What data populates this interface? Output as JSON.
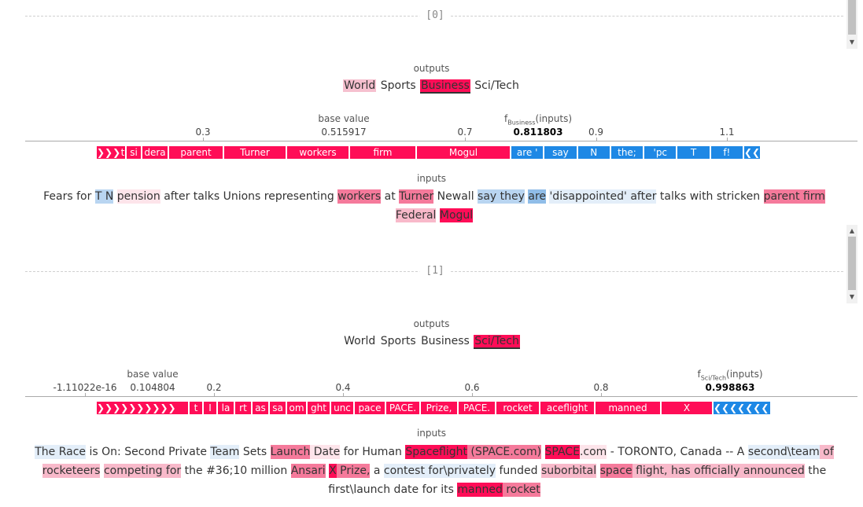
{
  "samples": [
    {
      "index_label": "[0]",
      "outputs_label": "outputs",
      "classes": [
        "World",
        "Sports",
        "Business",
        "Sci/Tech"
      ],
      "selected_class": "Business",
      "axis": {
        "ticks": [
          {
            "label": "0.3",
            "value": 0.3
          },
          {
            "label": "0.5",
            "value": 0.5
          },
          {
            "label": "0.7",
            "value": 0.7
          },
          {
            "label": "0.9",
            "value": 0.9
          },
          {
            "label": "1.1",
            "value": 1.1
          }
        ],
        "base_value_label": "base value",
        "base_value": "0.515917",
        "fx_prefix": "f",
        "fx_sub": "Business",
        "fx_suffix": "(inputs)",
        "fx_value": "0.811803"
      },
      "force_segments": [
        {
          "label": "t",
          "sign": "pos"
        },
        {
          "label": "si",
          "sign": "pos"
        },
        {
          "label": "dera",
          "sign": "pos"
        },
        {
          "label": "parent",
          "sign": "pos"
        },
        {
          "label": "Turner",
          "sign": "pos"
        },
        {
          "label": "workers",
          "sign": "pos"
        },
        {
          "label": "firm",
          "sign": "pos"
        },
        {
          "label": "Mogul",
          "sign": "pos"
        },
        {
          "label": "are '",
          "sign": "neg"
        },
        {
          "label": "say",
          "sign": "neg"
        },
        {
          "label": "N",
          "sign": "neg"
        },
        {
          "label": "the;",
          "sign": "neg"
        },
        {
          "label": "'pc",
          "sign": "neg"
        },
        {
          "label": "T",
          "sign": "neg"
        },
        {
          "label": "f!",
          "sign": "neg"
        }
      ],
      "inputs_label": "inputs",
      "tokens": [
        {
          "t": "Fears for ",
          "c": ""
        },
        {
          "t": "T N",
          "c": "n2"
        },
        {
          "t": " ",
          "c": ""
        },
        {
          "t": "pension",
          "c": "p1"
        },
        {
          "t": " after talks Unions representing ",
          "c": ""
        },
        {
          "t": "workers",
          "c": "p3"
        },
        {
          "t": " at ",
          "c": ""
        },
        {
          "t": "Turner",
          "c": "p3"
        },
        {
          "t": " Newall ",
          "c": ""
        },
        {
          "t": "say they",
          "c": "n2"
        },
        {
          "t": " ",
          "c": ""
        },
        {
          "t": "are",
          "c": "n3"
        },
        {
          "t": " ",
          "c": ""
        },
        {
          "t": "'disappointed'",
          "c": "n1"
        },
        {
          "t": " after",
          "c": "n1"
        },
        {
          "t": " talks with stricken ",
          "c": ""
        },
        {
          "t": "parent firm",
          "c": "p3"
        },
        {
          "t": " ",
          "c": ""
        },
        {
          "t": "Federal",
          "c": "p2"
        },
        {
          "t": " ",
          "c": ""
        },
        {
          "t": "Mogul",
          "c": "p4"
        }
      ]
    },
    {
      "index_label": "[1]",
      "outputs_label": "outputs",
      "classes": [
        "World",
        "Sports",
        "Business",
        "Sci/Tech"
      ],
      "selected_class": "Sci/Tech",
      "axis": {
        "ticks": [
          {
            "label": "-1.11022e-16",
            "value": 0.0
          },
          {
            "label": "0.2",
            "value": 0.2
          },
          {
            "label": "0.4",
            "value": 0.4
          },
          {
            "label": "0.6",
            "value": 0.6
          },
          {
            "label": "0.8",
            "value": 0.8
          }
        ],
        "base_value_label": "base value",
        "base_value": "0.104804",
        "fx_prefix": "f",
        "fx_sub": "Sci/Tech",
        "fx_suffix": "(inputs)",
        "fx_value": "0.998863"
      },
      "force_segments": [
        {
          "label": "",
          "sign": "pos"
        },
        {
          "label": "t",
          "sign": "pos"
        },
        {
          "label": "I",
          "sign": "pos"
        },
        {
          "label": "la",
          "sign": "pos"
        },
        {
          "label": "rt",
          "sign": "pos"
        },
        {
          "label": "as",
          "sign": "pos"
        },
        {
          "label": "sa",
          "sign": "pos"
        },
        {
          "label": "om",
          "sign": "pos"
        },
        {
          "label": "ght",
          "sign": "pos"
        },
        {
          "label": "unc",
          "sign": "pos"
        },
        {
          "label": "pace",
          "sign": "pos"
        },
        {
          "label": "PACE.",
          "sign": "pos"
        },
        {
          "label": "Prize,",
          "sign": "pos"
        },
        {
          "label": "PACE.",
          "sign": "pos"
        },
        {
          "label": "rocket",
          "sign": "pos"
        },
        {
          "label": "aceflight",
          "sign": "pos"
        },
        {
          "label": "manned",
          "sign": "pos"
        },
        {
          "label": "X",
          "sign": "pos"
        },
        {
          "label": "",
          "sign": "neg"
        }
      ],
      "inputs_label": "inputs",
      "tokens": [
        {
          "t": "The Race",
          "c": "n1"
        },
        {
          "t": " is On: Second Private ",
          "c": ""
        },
        {
          "t": "Team",
          "c": "n1"
        },
        {
          "t": " Sets ",
          "c": ""
        },
        {
          "t": "Launch",
          "c": "p3"
        },
        {
          "t": " Date",
          "c": "p1"
        },
        {
          "t": " for Human ",
          "c": ""
        },
        {
          "t": "Spaceflight",
          "c": "p4"
        },
        {
          "t": " (SPACE.com)",
          "c": "p3"
        },
        {
          "t": " ",
          "c": ""
        },
        {
          "t": "SPACE",
          "c": "p4"
        },
        {
          "t": ".com",
          "c": "p1"
        },
        {
          "t": " - TORONTO, Canada -- A ",
          "c": ""
        },
        {
          "t": "second\\team",
          "c": "n1"
        },
        {
          "t": " of rocketeers",
          "c": "p2"
        },
        {
          "t": " ",
          "c": ""
        },
        {
          "t": "competing for",
          "c": "p2"
        },
        {
          "t": " the #36;10 million ",
          "c": ""
        },
        {
          "t": "Ansari",
          "c": "p3"
        },
        {
          "t": " ",
          "c": ""
        },
        {
          "t": "X",
          "c": "p4"
        },
        {
          "t": " Prize,",
          "c": "p3"
        },
        {
          "t": " a ",
          "c": ""
        },
        {
          "t": "contest for\\privately",
          "c": "n1"
        },
        {
          "t": " funded ",
          "c": ""
        },
        {
          "t": "suborbital",
          "c": "p2"
        },
        {
          "t": " ",
          "c": ""
        },
        {
          "t": "space",
          "c": "p3"
        },
        {
          "t": " flight, has officially announced",
          "c": "p2"
        },
        {
          "t": " the first\\launch date for its ",
          "c": ""
        },
        {
          "t": "manned",
          "c": "p4"
        },
        {
          "t": " rocket",
          "c": "p3"
        }
      ]
    }
  ]
}
